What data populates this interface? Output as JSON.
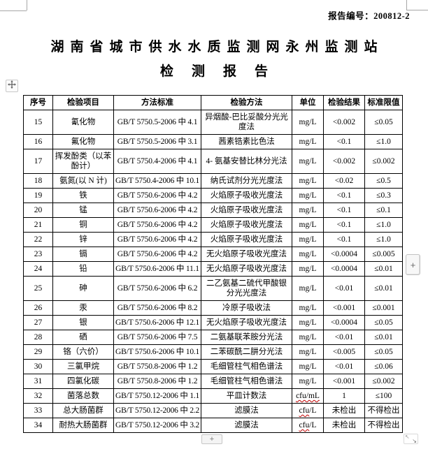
{
  "report": {
    "number_label": "报告编号：",
    "number": "200812-2",
    "title_line1": "湖南省城市供水水质监测网永州监测站",
    "title_line2": "检测报告"
  },
  "table": {
    "headers": [
      "序号",
      "检验项目",
      "方法标准",
      "检验方法",
      "单位",
      "检验结果",
      "标准限值"
    ],
    "rows": [
      {
        "no": "15",
        "item": "氰化物",
        "standard": "GB/T 5750.5-2006 中 4.1",
        "method": "异烟酸-巴比妥酸分光光度法",
        "unit": "mg/L",
        "result": "<0.002",
        "limit": "≤0.05"
      },
      {
        "no": "16",
        "item": "氟化物",
        "standard": "GB/T 5750.5-2006 中 3.1",
        "method": "茜素锆素比色法",
        "unit": "mg/L",
        "result": "<0.1",
        "limit": "≤1.0"
      },
      {
        "no": "17",
        "item": "挥发酚类（以苯酚计）",
        "standard": "GB/T 5750.4-2006 中 4.1",
        "method": "4- 氨基安替比林分光法",
        "unit": "mg/L",
        "result": "<0.002",
        "limit": "≤0.002"
      },
      {
        "no": "18",
        "item": "氨氮(以 N 计)",
        "standard": "GB/T 5750.4-2006 中 10.1",
        "method": "纳氏试剂分光光度法",
        "unit": "mg/L",
        "result": "<0.02",
        "limit": "≤0.5"
      },
      {
        "no": "19",
        "item": "铁",
        "standard": "GB/T 5750.6-2006 中 4.2",
        "method": "火焰原子吸收光度法",
        "unit": "mg/L",
        "result": "<0.1",
        "limit": "≤0.3"
      },
      {
        "no": "20",
        "item": "锰",
        "standard": "GB/T 5750.6-2006 中 4.2",
        "method": "火焰原子吸收光度法",
        "unit": "mg/L",
        "result": "<0.1",
        "limit": "≤0.1"
      },
      {
        "no": "21",
        "item": "铜",
        "standard": "GB/T 5750.6-2006 中 4.2",
        "method": "火焰原子吸收光度法",
        "unit": "mg/L",
        "result": "<0.1",
        "limit": "≤1.0"
      },
      {
        "no": "22",
        "item": "锌",
        "standard": "GB/T 5750.6-2006 中 4.2",
        "method": "火焰原子吸收光度法",
        "unit": "mg/L",
        "result": "<0.1",
        "limit": "≤1.0"
      },
      {
        "no": "23",
        "item": "镉",
        "standard": "GB/T 5750.6-2006 中 4.2",
        "method": "无火焰原子吸收光度法",
        "unit": "mg/L",
        "result": "<0.0004",
        "limit": "≤0.005"
      },
      {
        "no": "24",
        "item": "铅",
        "standard": "GB/T 5750.6-2006 中 11.1",
        "method": "无火焰原子吸收光度法",
        "unit": "mg/L",
        "result": "<0.0004",
        "limit": "≤0.01"
      },
      {
        "no": "25",
        "item": "砷",
        "standard": "GB/T 5750.6-2006 中 6.2",
        "method": "二乙氨基二硫代甲酸银分光光度法",
        "unit": "mg/L",
        "result": "<0.01",
        "limit": "≤0.01"
      },
      {
        "no": "26",
        "item": "汞",
        "standard": "GB/T 5750.6-2006 中 8.2",
        "method": "冷原子吸收法",
        "unit": "mg/L",
        "result": "<0.001",
        "limit": "≤0.001"
      },
      {
        "no": "27",
        "item": "银",
        "standard": "GB/T 5750.6-2006 中 12.1",
        "method": "无火焰原子吸收光度法",
        "unit": "mg/L",
        "result": "<0.0004",
        "limit": "≤0.05"
      },
      {
        "no": "28",
        "item": "硒",
        "standard": "GB/T 5750.6-2006 中 7.5",
        "method": "二氨基联苯胺分光法",
        "unit": "mg/L",
        "result": "<0.01",
        "limit": "≤0.01"
      },
      {
        "no": "29",
        "item": "铬（六价）",
        "standard": "GB/T 5750.6-2006 中 10.1",
        "method": "二苯碳酰二肼分光法",
        "unit": "mg/L",
        "result": "<0.005",
        "limit": "≤0.05"
      },
      {
        "no": "30",
        "item": "三氯甲烷",
        "standard": "GB/T 5750.8-2006 中 1.2",
        "method": "毛细管柱气相色谱法",
        "unit": "mg/L",
        "result": "<0.01",
        "limit": "≤0.06"
      },
      {
        "no": "31",
        "item": "四氯化碳",
        "standard": "GB/T 5750.8-2006 中 1.2",
        "method": "毛细管柱气相色谱法",
        "unit": "mg/L",
        "result": "<0.001",
        "limit": "≤0.002"
      },
      {
        "no": "32",
        "item": "菌落总数",
        "standard": "GB/T 5750.12-2006 中 1.1",
        "method": "平皿计数法",
        "unit": "cfu/mL",
        "unit_wavy": "cfu/mL",
        "result": "1",
        "limit": "≤100"
      },
      {
        "no": "33",
        "item": "总大肠菌群",
        "standard": "GB/T 5750.12-2006 中 2.2",
        "method": "滤膜法",
        "unit": "cfu/L",
        "unit_wavy": "cfu",
        "result": "未检出",
        "limit": "不得检出"
      },
      {
        "no": "34",
        "item": "耐热大肠菌群",
        "standard": "GB/T 5750.12-2006 中 3.2",
        "method": "滤膜法",
        "unit": "cfu/L",
        "unit_wavy": "cfu",
        "result": "未检出",
        "limit": "不得检出"
      }
    ]
  },
  "controls": {
    "side_scroll_button_label": "+",
    "bottom_button_label": "+",
    "resize_handle_icons": [
      "↖",
      "↘"
    ]
  },
  "colors": {
    "table_border": "#000000",
    "spellcheck_underline": "#c00000",
    "crop_mark": "#a6a6a6"
  }
}
